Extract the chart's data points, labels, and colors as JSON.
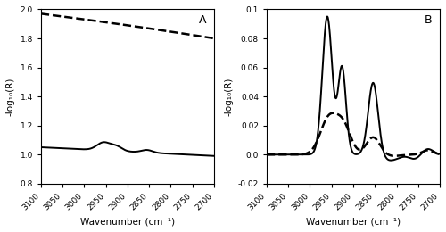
{
  "xlim": [
    3100,
    2700
  ],
  "xticks": [
    3100,
    3050,
    3000,
    2950,
    2900,
    2850,
    2800,
    2750,
    2700
  ],
  "panel_A": {
    "label": "A",
    "ylim": [
      0.8,
      2.0
    ],
    "yticks": [
      0.8,
      1.0,
      1.2,
      1.4,
      1.6,
      1.8,
      2.0
    ],
    "ylabel": "-log₁₀(R)"
  },
  "panel_B": {
    "label": "B",
    "ylim": [
      -0.02,
      0.1
    ],
    "yticks": [
      -0.02,
      0.0,
      0.02,
      0.04,
      0.06,
      0.08,
      0.1
    ],
    "ylabel": "-log₁₀(R)"
  },
  "xlabel": "Wavenumber (cm⁻¹)",
  "solid_color": "black",
  "dashed_color": "black",
  "lw_solid": 1.4,
  "lw_dashed": 1.8
}
